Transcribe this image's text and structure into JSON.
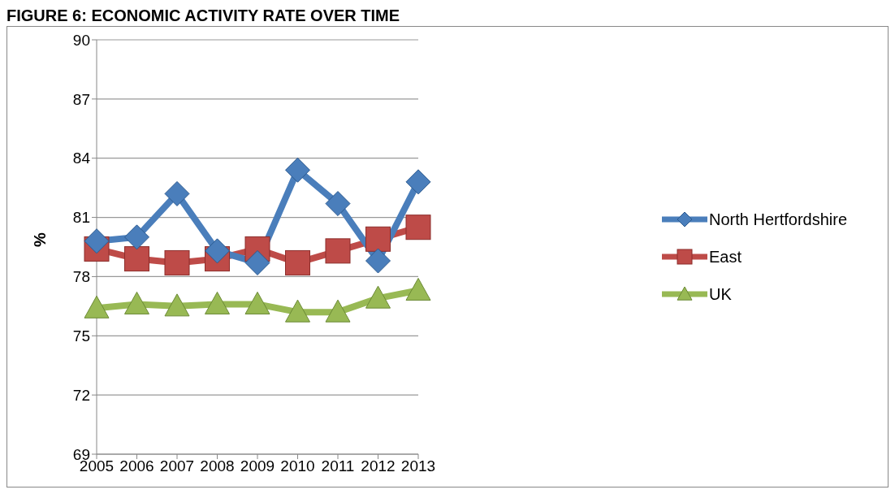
{
  "chart_data": {
    "type": "line",
    "title": "FIGURE 6: ECONOMIC ACTIVITY RATE OVER TIME",
    "ylabel": "%",
    "categories": [
      "2005",
      "2006",
      "2007",
      "2008",
      "2009",
      "2010",
      "2011",
      "2012",
      "2013"
    ],
    "series": [
      {
        "name": "North Hertfordshire",
        "color": "#4a7ebb",
        "marker": "diamond",
        "values": [
          79.8,
          80.0,
          82.2,
          79.3,
          78.7,
          83.4,
          81.7,
          78.8,
          82.8
        ]
      },
      {
        "name": "East",
        "color": "#be4b48",
        "marker": "square",
        "values": [
          79.4,
          78.9,
          78.7,
          78.9,
          79.4,
          78.7,
          79.3,
          79.9,
          80.5
        ]
      },
      {
        "name": "UK",
        "color": "#98b954",
        "marker": "triangle",
        "values": [
          76.4,
          76.6,
          76.5,
          76.6,
          76.6,
          76.2,
          76.2,
          76.9,
          77.3
        ]
      }
    ],
    "ylim": [
      69,
      90
    ],
    "yticks": [
      69,
      72,
      75,
      78,
      81,
      84,
      87,
      90
    ],
    "grid": "y",
    "legend": "right"
  }
}
